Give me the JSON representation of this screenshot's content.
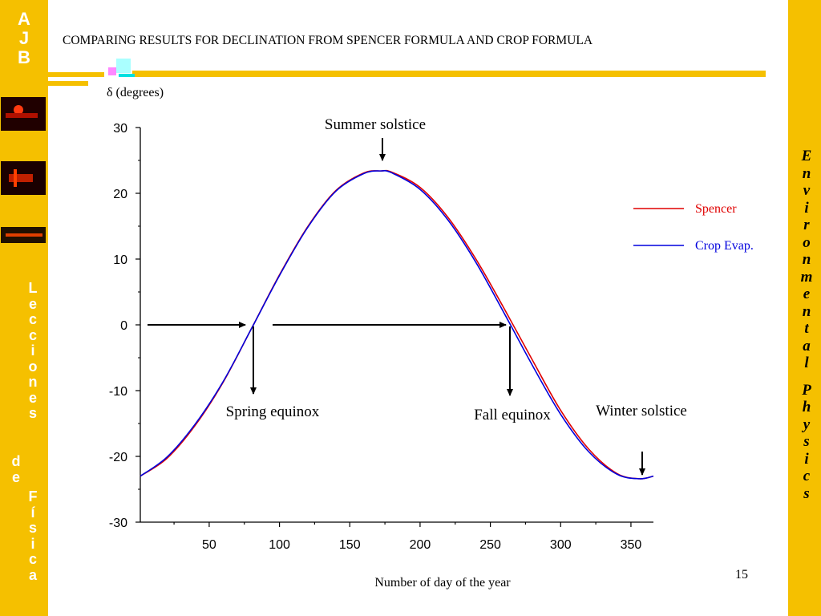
{
  "sidebar_left": {
    "top_letters": [
      "A",
      "J",
      "B"
    ],
    "lecciones_letters": [
      "L",
      "e",
      "c",
      "c",
      "i",
      "o",
      "n",
      "e",
      "s"
    ],
    "de_letters": [
      "d",
      "e"
    ],
    "fisica_letters": [
      "F",
      "í",
      "s",
      "i",
      "c",
      "a"
    ]
  },
  "sidebar_right": {
    "letters": [
      "E",
      "n",
      "v",
      "i",
      "r",
      "o",
      "n",
      "m",
      "e",
      "n",
      "t",
      "a",
      "l",
      "",
      "P",
      "h",
      "y",
      "s",
      "i",
      "c",
      "s"
    ]
  },
  "slide": {
    "title": "COMPARING RESULTS FOR DECLINATION FROM SPENCER FORMULA AND CROP FORMULA",
    "page_number": "15"
  },
  "colors": {
    "accent": "#f5c000",
    "spencer": "#e00000",
    "crop": "#0000dd"
  },
  "chart_data": {
    "type": "line",
    "title": "",
    "ylabel": "δ (degrees)",
    "xlabel": "Number of day of the year",
    "xlim": [
      1,
      366
    ],
    "ylim": [
      -30,
      30
    ],
    "xticks": [
      50,
      100,
      150,
      200,
      250,
      300,
      350
    ],
    "yticks": [
      30,
      20,
      10,
      0,
      -10,
      -20,
      -30
    ],
    "grid": false,
    "legend_position": "right",
    "series": [
      {
        "name": "Spencer",
        "x": [
          1,
          20,
          40,
          60,
          80,
          100,
          120,
          140,
          160,
          172,
          180,
          200,
          220,
          240,
          260,
          280,
          300,
          320,
          340,
          356,
          366
        ],
        "values": [
          -23.0,
          -20.3,
          -15.3,
          -8.7,
          -0.6,
          7.6,
          14.9,
          20.4,
          23.1,
          23.4,
          23.2,
          20.9,
          16.3,
          9.9,
          2.4,
          -5.4,
          -13.0,
          -18.9,
          -22.6,
          -23.4,
          -23.0
        ]
      },
      {
        "name": "Crop Evap.",
        "x": [
          1,
          20,
          40,
          60,
          80,
          100,
          120,
          140,
          160,
          172,
          180,
          200,
          220,
          240,
          260,
          280,
          300,
          320,
          340,
          356,
          366
        ],
        "values": [
          -23.0,
          -20.1,
          -15.1,
          -8.6,
          -0.6,
          7.5,
          14.8,
          20.3,
          23.0,
          23.4,
          23.1,
          20.6,
          15.9,
          9.4,
          1.7,
          -6.2,
          -13.6,
          -19.3,
          -22.7,
          -23.4,
          -23.0
        ]
      }
    ],
    "annotations": [
      {
        "text": "Summer solstice",
        "x": 172,
        "y": 23.4
      },
      {
        "text": "Spring equinox",
        "x": 81,
        "y": 0
      },
      {
        "text": "Fall equinox",
        "x": 264,
        "y": 0
      },
      {
        "text": "Winter solstice",
        "x": 356,
        "y": -23.4
      }
    ]
  }
}
